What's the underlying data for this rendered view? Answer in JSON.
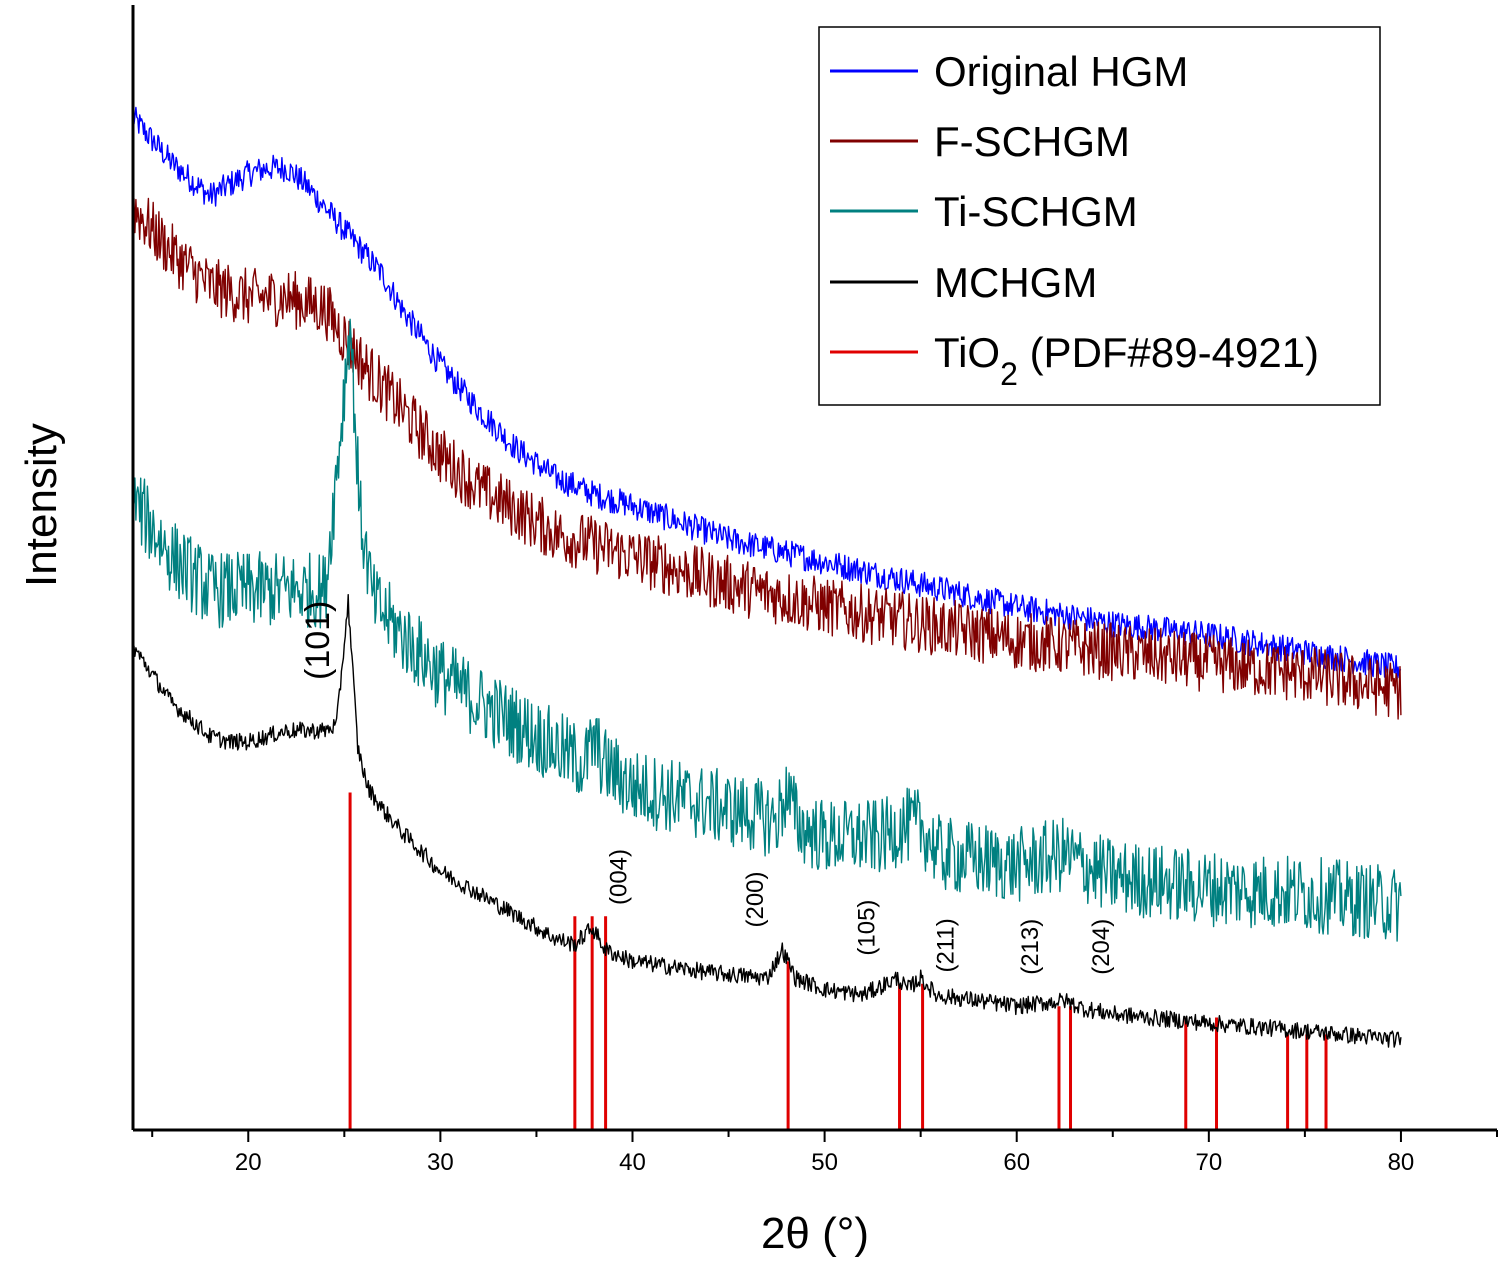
{
  "chart_data": {
    "type": "line",
    "title": "",
    "xlabel": "2θ (°)",
    "ylabel": "Intensity",
    "xlim": [
      14,
      85
    ],
    "xticks": [
      20,
      30,
      40,
      50,
      60,
      70,
      80
    ],
    "ylim": [
      0,
      100
    ],
    "yticks_shown": false,
    "grid": false,
    "legend_position": "top-right",
    "series": [
      {
        "name": "Original HGM",
        "color": "#0000ff",
        "noise": 1.2,
        "x": [
          14,
          16,
          18,
          20,
          21,
          22,
          23,
          24,
          25,
          26,
          27,
          28,
          30,
          32,
          34,
          36,
          38,
          40,
          45,
          50,
          55,
          60,
          65,
          70,
          75,
          80
        ],
        "y": [
          90,
          86,
          83,
          85,
          85.5,
          85.5,
          84,
          82,
          80,
          78,
          76,
          73,
          68,
          64,
          60.5,
          58,
          56.5,
          55.5,
          52.5,
          50.5,
          48.5,
          46.5,
          45,
          44,
          42.5,
          41
        ]
      },
      {
        "name": "F-SCHGM",
        "color": "#800000",
        "noise": 2.6,
        "x": [
          14,
          16,
          18,
          20,
          22,
          24,
          25,
          26,
          27,
          28,
          30,
          32,
          34,
          36,
          38,
          40,
          45,
          50,
          55,
          60,
          65,
          70,
          75,
          80
        ],
        "y": [
          82,
          78,
          75,
          74,
          74,
          73,
          70.5,
          68,
          66,
          64,
          60,
          57,
          55,
          53,
          52,
          51,
          48.5,
          46.5,
          45,
          43.5,
          42.5,
          41.5,
          40.5,
          39
        ]
      },
      {
        "name": "Ti-SCHGM",
        "color": "#008080",
        "noise": 3.4,
        "x": [
          14,
          16,
          18,
          20,
          22,
          24,
          24.8,
          25.3,
          25.8,
          26.5,
          28,
          30,
          32,
          34,
          36,
          37.5,
          38,
          38.5,
          40,
          45,
          47.5,
          48,
          48.7,
          50,
          53,
          54,
          55,
          56,
          60,
          62.5,
          63.5,
          65,
          70,
          75,
          80
        ],
        "y": [
          56,
          51,
          48,
          48,
          48,
          48,
          62,
          72,
          55,
          47,
          44,
          40.5,
          38,
          36,
          34,
          32.5,
          34.5,
          32.5,
          30.5,
          28.5,
          27.5,
          30,
          27,
          26,
          26,
          27,
          27,
          24.5,
          23.5,
          24.5,
          23.5,
          22.5,
          21.5,
          21,
          20
        ]
      },
      {
        "name": "MCHGM",
        "color": "#000000",
        "noise": 0.75,
        "x": [
          14,
          16,
          18,
          19,
          20,
          21,
          22,
          23,
          24,
          24.6,
          25.2,
          25.7,
          26.2,
          27,
          28,
          30,
          32,
          34,
          36,
          37,
          37.9,
          38.6,
          40,
          44,
          47,
          47.8,
          48.5,
          50,
          52,
          53.8,
          54.3,
          55,
          55.8,
          58,
          60,
          62.5,
          63.5,
          65,
          70,
          75,
          80
        ],
        "y": [
          43,
          38,
          35,
          34.5,
          34.5,
          35,
          35.5,
          35.5,
          35.5,
          36,
          47,
          34,
          30.5,
          28.5,
          26.5,
          23,
          21,
          19,
          17,
          16.5,
          18,
          16,
          15,
          14,
          13.5,
          16,
          13.5,
          12.5,
          12,
          13.5,
          12.5,
          13.5,
          12,
          11.5,
          11,
          11.5,
          10.8,
          10.3,
          9.5,
          8.8,
          8
        ]
      }
    ],
    "reference": {
      "name": "TiO2 (PDF#89-4921)",
      "legend_base": "TiO",
      "legend_sub": "2",
      "legend_suffix": " (PDF#89-4921)",
      "color": "#e00000",
      "baseline": 0,
      "lines": [
        {
          "x": 25.3,
          "h": 30
        },
        {
          "x": 37.0,
          "h": 19
        },
        {
          "x": 37.9,
          "h": 19
        },
        {
          "x": 38.6,
          "h": 19
        },
        {
          "x": 48.1,
          "h": 15
        },
        {
          "x": 53.9,
          "h": 13
        },
        {
          "x": 55.1,
          "h": 13
        },
        {
          "x": 62.2,
          "h": 11
        },
        {
          "x": 62.8,
          "h": 11
        },
        {
          "x": 68.8,
          "h": 10
        },
        {
          "x": 70.4,
          "h": 10
        },
        {
          "x": 74.1,
          "h": 8.5
        },
        {
          "x": 75.1,
          "h": 8.5
        },
        {
          "x": 76.1,
          "h": 8.5
        }
      ]
    },
    "annotations": [
      {
        "text": "(101)",
        "x": 24.2,
        "y": 40,
        "size": "big"
      },
      {
        "text": "(004)",
        "x": 39.7,
        "y": 20,
        "size": "small"
      },
      {
        "text": "(200)",
        "x": 46.8,
        "y": 18,
        "size": "small"
      },
      {
        "text": "(105)",
        "x": 52.6,
        "y": 15.5,
        "size": "small"
      },
      {
        "text": "(211)",
        "x": 56.7,
        "y": 14,
        "size": "small"
      },
      {
        "text": "(213)",
        "x": 61.1,
        "y": 13.8,
        "size": "small"
      },
      {
        "text": "(204)",
        "x": 64.8,
        "y": 13.8,
        "size": "small"
      }
    ]
  }
}
